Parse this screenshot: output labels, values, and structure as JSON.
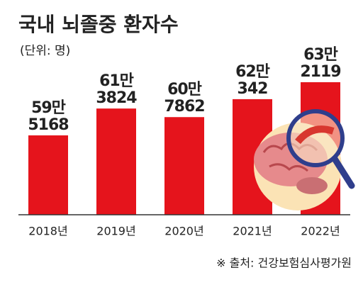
{
  "chart_data": {
    "type": "bar",
    "title": "국내 뇌졸중 환자수",
    "subtitle": "(단위: 명)",
    "categories": [
      "2018년",
      "2019년",
      "2020년",
      "2021년",
      "2022년"
    ],
    "values": [
      595168,
      613824,
      607862,
      620342,
      632119
    ],
    "value_labels": [
      [
        "59만",
        "5168"
      ],
      [
        "61만",
        "3824"
      ],
      [
        "60만",
        "7862"
      ],
      [
        "62만",
        "342"
      ],
      [
        "63만",
        "2119"
      ]
    ],
    "color": "#e5141c",
    "ylim": [
      540000,
      640000
    ],
    "source": "※ 출처: 건강보험심사평가원"
  }
}
